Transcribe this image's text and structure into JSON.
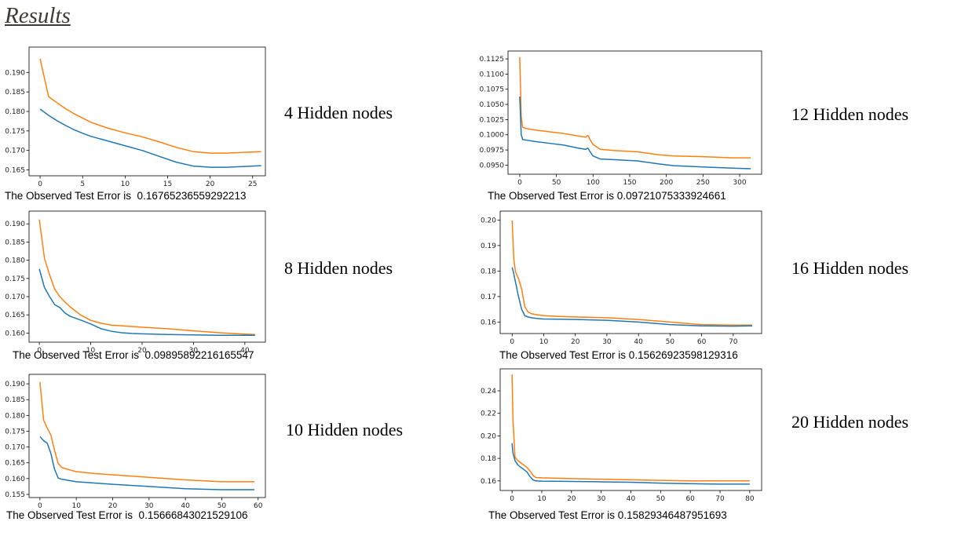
{
  "page": {
    "title": "Results"
  },
  "chart_data": [
    {
      "type": "line",
      "node_label": "4 Hidden nodes",
      "caption": "The Observed Test Error is  0.16765236559292213",
      "xlim": [
        -1.3,
        26.5
      ],
      "ylim": [
        0.1635,
        0.1965
      ],
      "xticks": [
        0,
        5,
        10,
        15,
        20,
        25
      ],
      "yticks": [
        0.165,
        0.17,
        0.175,
        0.18,
        0.185,
        0.19
      ],
      "yfmt": 3,
      "series": [
        {
          "color": "#ff7f0e",
          "x": [
            0,
            1,
            2,
            3,
            4,
            5,
            6,
            8,
            10,
            12,
            14,
            16,
            18,
            20,
            22,
            24,
            26
          ],
          "y": [
            0.1935,
            0.1838,
            0.1822,
            0.1807,
            0.1794,
            0.1783,
            0.1772,
            0.1757,
            0.1745,
            0.1735,
            0.1722,
            0.1708,
            0.1697,
            0.1693,
            0.1693,
            0.1695,
            0.1697
          ]
        },
        {
          "color": "#1f77b4",
          "x": [
            0,
            1,
            2,
            3,
            4,
            5,
            6,
            8,
            10,
            12,
            14,
            16,
            18,
            20,
            22,
            24,
            26
          ],
          "y": [
            0.1806,
            0.179,
            0.1776,
            0.1764,
            0.1753,
            0.1744,
            0.1736,
            0.1724,
            0.1712,
            0.17,
            0.1685,
            0.167,
            0.166,
            0.1657,
            0.1657,
            0.1659,
            0.1661
          ]
        }
      ]
    },
    {
      "type": "line",
      "node_label": "12 Hidden nodes",
      "caption": "The Observed Test Error is 0.09721075333924661",
      "xlim": [
        -16,
        330
      ],
      "ylim": [
        0.0935,
        0.1138
      ],
      "xticks": [
        0,
        50,
        100,
        150,
        200,
        250,
        300
      ],
      "yticks": [
        0.095,
        0.0975,
        0.1,
        0.1025,
        0.105,
        0.1075,
        0.11,
        0.1125
      ],
      "yfmt": 4,
      "series": [
        {
          "color": "#ff7f0e",
          "x": [
            0,
            2,
            4,
            10,
            20,
            40,
            60,
            80,
            90,
            93,
            96,
            100,
            110,
            130,
            160,
            190,
            210,
            250,
            290,
            315
          ],
          "y": [
            0.1128,
            0.103,
            0.1012,
            0.101,
            0.1008,
            0.1005,
            0.1002,
            0.0998,
            0.0996,
            0.0999,
            0.0992,
            0.0984,
            0.0976,
            0.0974,
            0.0972,
            0.0967,
            0.0965,
            0.0964,
            0.0962,
            0.0962
          ]
        },
        {
          "color": "#1f77b4",
          "x": [
            0,
            2,
            4,
            10,
            20,
            40,
            60,
            80,
            90,
            93,
            96,
            100,
            110,
            130,
            160,
            190,
            210,
            250,
            290,
            315
          ],
          "y": [
            0.1063,
            0.1,
            0.0992,
            0.0991,
            0.0989,
            0.0986,
            0.0983,
            0.0978,
            0.0976,
            0.0978,
            0.0972,
            0.0965,
            0.096,
            0.0959,
            0.0957,
            0.0952,
            0.0949,
            0.0947,
            0.0945,
            0.0944
          ]
        }
      ]
    },
    {
      "type": "line",
      "node_label": "8 Hidden nodes",
      "caption": "The Observed Test Error is  0.09895892216165547",
      "xlim": [
        -2,
        44
      ],
      "ylim": [
        0.1575,
        0.1935
      ],
      "xticks": [
        0,
        10,
        20,
        30,
        40
      ],
      "yticks": [
        0.16,
        0.165,
        0.17,
        0.175,
        0.18,
        0.185,
        0.19
      ],
      "yfmt": 3,
      "series": [
        {
          "color": "#ff7f0e",
          "x": [
            0,
            1,
            2,
            3,
            4,
            5,
            6,
            8,
            10,
            12,
            14,
            16,
            18,
            20,
            25,
            30,
            35,
            40,
            42
          ],
          "y": [
            0.1912,
            0.1805,
            0.176,
            0.172,
            0.17,
            0.1685,
            0.1672,
            0.165,
            0.1635,
            0.1627,
            0.1622,
            0.162,
            0.1618,
            0.1616,
            0.1612,
            0.1606,
            0.1601,
            0.1597,
            0.1596
          ]
        },
        {
          "color": "#1f77b4",
          "x": [
            0,
            1,
            2,
            3,
            4,
            5,
            6,
            8,
            10,
            12,
            14,
            16,
            18,
            20,
            25,
            30,
            35,
            40,
            42
          ],
          "y": [
            0.1776,
            0.1725,
            0.17,
            0.1678,
            0.167,
            0.1655,
            0.1646,
            0.1636,
            0.1625,
            0.1612,
            0.1605,
            0.1601,
            0.1599,
            0.1598,
            0.1596,
            0.1595,
            0.1594,
            0.1594,
            0.1594
          ]
        }
      ]
    },
    {
      "type": "line",
      "node_label": "16 Hidden nodes",
      "caption": "The Observed Test Error is 0.15626923598129316",
      "xlim": [
        -3.8,
        79
      ],
      "ylim": [
        0.1555,
        0.2035
      ],
      "xticks": [
        0,
        10,
        20,
        30,
        40,
        50,
        60,
        70
      ],
      "yticks": [
        0.16,
        0.17,
        0.18,
        0.19,
        0.2
      ],
      "yfmt": 2,
      "series": [
        {
          "color": "#ff7f0e",
          "x": [
            0,
            0.5,
            1,
            2,
            3,
            4,
            5,
            6,
            8,
            10,
            15,
            20,
            30,
            40,
            50,
            60,
            70,
            76
          ],
          "y": [
            0.1998,
            0.185,
            0.18,
            0.177,
            0.173,
            0.166,
            0.164,
            0.1633,
            0.1628,
            0.1625,
            0.1622,
            0.162,
            0.1617,
            0.161,
            0.16,
            0.159,
            0.1588,
            0.1588
          ]
        },
        {
          "color": "#1f77b4",
          "x": [
            0,
            0.5,
            1,
            2,
            3,
            4,
            5,
            6,
            8,
            10,
            15,
            20,
            30,
            40,
            50,
            60,
            70,
            76
          ],
          "y": [
            0.1815,
            0.179,
            0.176,
            0.17,
            0.165,
            0.1625,
            0.162,
            0.1617,
            0.1614,
            0.1612,
            0.1611,
            0.161,
            0.1607,
            0.16,
            0.159,
            0.1585,
            0.1584,
            0.1585
          ]
        }
      ]
    },
    {
      "type": "line",
      "node_label": "10 Hidden nodes",
      "caption": "The Observed Test Error is  0.15666843021529106",
      "xlim": [
        -3,
        62
      ],
      "ylim": [
        0.154,
        0.193
      ],
      "xticks": [
        0,
        10,
        20,
        30,
        40,
        50,
        60
      ],
      "yticks": [
        0.155,
        0.16,
        0.165,
        0.17,
        0.175,
        0.18,
        0.185,
        0.19
      ],
      "yfmt": 3,
      "series": [
        {
          "color": "#ff7f0e",
          "x": [
            0,
            1,
            2,
            3,
            4,
            5,
            6,
            8,
            10,
            15,
            20,
            30,
            40,
            50,
            59
          ],
          "y": [
            0.1905,
            0.1785,
            0.176,
            0.1738,
            0.169,
            0.1648,
            0.1635,
            0.1628,
            0.1622,
            0.1616,
            0.1612,
            0.1604,
            0.1596,
            0.159,
            0.159
          ]
        },
        {
          "color": "#1f77b4",
          "x": [
            0,
            1,
            2,
            3,
            4,
            5,
            6,
            8,
            10,
            15,
            20,
            30,
            40,
            50,
            59
          ],
          "y": [
            0.1733,
            0.172,
            0.1712,
            0.168,
            0.163,
            0.1602,
            0.1598,
            0.1594,
            0.159,
            0.1586,
            0.1582,
            0.1575,
            0.1568,
            0.1565,
            0.1565
          ]
        }
      ]
    },
    {
      "type": "line",
      "node_label": "20 Hidden nodes",
      "caption": "The Observed Test Error is 0.15829346487951693",
      "xlim": [
        -4,
        84
      ],
      "ylim": [
        0.1515,
        0.2595
      ],
      "xticks": [
        0,
        10,
        20,
        30,
        40,
        50,
        60,
        70,
        80
      ],
      "yticks": [
        0.16,
        0.18,
        0.2,
        0.22,
        0.24
      ],
      "yfmt": 2,
      "series": [
        {
          "color": "#ff7f0e",
          "x": [
            0,
            0.3,
            1,
            2,
            3,
            5,
            6,
            7,
            8,
            10,
            15,
            20,
            30,
            40,
            50,
            60,
            70,
            80
          ],
          "y": [
            0.2545,
            0.215,
            0.181,
            0.178,
            0.176,
            0.172,
            0.169,
            0.165,
            0.163,
            0.1627,
            0.1624,
            0.162,
            0.1615,
            0.161,
            0.1605,
            0.16,
            0.16,
            0.16
          ]
        },
        {
          "color": "#1f77b4",
          "x": [
            0,
            0.3,
            1,
            2,
            3,
            5,
            6,
            7,
            8,
            10,
            15,
            20,
            30,
            40,
            50,
            60,
            70,
            80
          ],
          "y": [
            0.1935,
            0.185,
            0.178,
            0.174,
            0.172,
            0.168,
            0.164,
            0.161,
            0.16,
            0.1598,
            0.1597,
            0.1595,
            0.1592,
            0.1588,
            0.158,
            0.1575,
            0.1572,
            0.1572
          ]
        }
      ]
    }
  ]
}
